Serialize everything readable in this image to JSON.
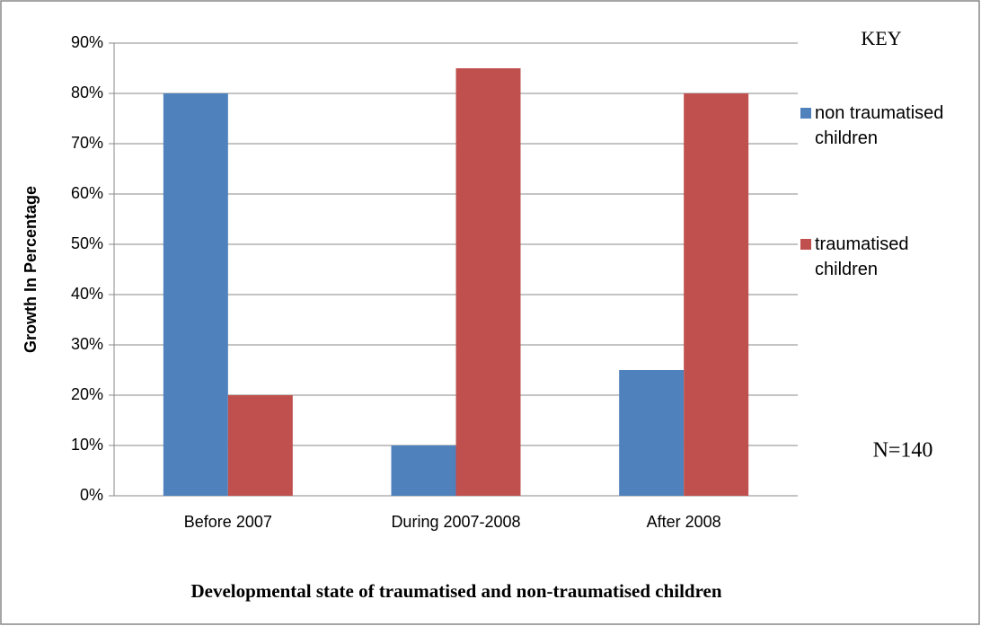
{
  "chart_data": {
    "type": "bar",
    "categories": [
      "Before 2007",
      "During 2007-2008",
      "After 2008"
    ],
    "series": [
      {
        "name": "non traumatised children",
        "color": "#4f81bd",
        "values": [
          80,
          10,
          25
        ]
      },
      {
        "name": "traumatised children",
        "color": "#c0504d",
        "values": [
          20,
          85,
          80
        ]
      }
    ],
    "ylim": [
      0,
      90
    ],
    "yticks": [
      {
        "value": 0,
        "label": "0%"
      },
      {
        "value": 10,
        "label": "10%"
      },
      {
        "value": 20,
        "label": "20%"
      },
      {
        "value": 30,
        "label": "30%"
      },
      {
        "value": 40,
        "label": "40%"
      },
      {
        "value": 50,
        "label": "50%"
      },
      {
        "value": 60,
        "label": "60%"
      },
      {
        "value": 70,
        "label": "70%"
      },
      {
        "value": 80,
        "label": "80%"
      },
      {
        "value": 90,
        "label": "90%"
      }
    ],
    "ylabel": "Growth In Percentage",
    "xlabel": "Developmental state of traumatised and non-traumatised children",
    "legend_title": "KEY",
    "annotation": "N=140",
    "grid": true,
    "legend": "right"
  }
}
